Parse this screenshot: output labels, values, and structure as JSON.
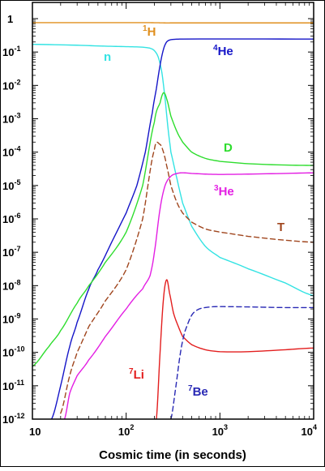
{
  "chart_data": {
    "type": "line",
    "title": "",
    "xlabel": "Cosmic time (in seconds)",
    "ylabel": "",
    "xscale": "log",
    "yscale": "log",
    "xlim": [
      10,
      10000
    ],
    "ylim": [
      1e-12,
      1
    ],
    "grid": false,
    "x_ticks": [
      {
        "base": "10",
        "exp": "",
        "value": 10
      },
      {
        "base": "10",
        "exp": "2",
        "value": 100
      },
      {
        "base": "10",
        "exp": "3",
        "value": 1000
      },
      {
        "base": "10",
        "exp": "4",
        "value": 10000
      }
    ],
    "y_ticks": [
      {
        "base": "1",
        "exp": "",
        "value": 1
      },
      {
        "base": "10",
        "exp": "-1",
        "value": 0.1
      },
      {
        "base": "10",
        "exp": "-2",
        "value": 0.01
      },
      {
        "base": "10",
        "exp": "-3",
        "value": 0.001
      },
      {
        "base": "10",
        "exp": "-4",
        "value": 0.0001
      },
      {
        "base": "10",
        "exp": "-5",
        "value": 1e-05
      },
      {
        "base": "10",
        "exp": "-6",
        "value": 1e-06
      },
      {
        "base": "10",
        "exp": "-7",
        "value": 1e-07
      },
      {
        "base": "10",
        "exp": "-8",
        "value": 1e-08
      },
      {
        "base": "10",
        "exp": "-9",
        "value": 1e-09
      },
      {
        "base": "10",
        "exp": "-10",
        "value": 1e-10
      },
      {
        "base": "10",
        "exp": "-11",
        "value": 1e-11
      },
      {
        "base": "10",
        "exp": "-12",
        "value": 1e-12
      }
    ],
    "series": [
      {
        "label_sup": "1",
        "label_main": "H",
        "color": "#E08F1E",
        "dash": false,
        "x": [
          10,
          100,
          150,
          200,
          230,
          260,
          300,
          1000,
          10000
        ],
        "y": [
          0.76,
          0.76,
          0.76,
          0.755,
          0.75,
          0.745,
          0.745,
          0.745,
          0.745
        ]
      },
      {
        "label_sup": "",
        "label_main": "n",
        "color": "#33E3E3",
        "dash": false,
        "x": [
          10,
          30,
          60,
          100,
          150,
          180,
          200,
          220,
          240,
          260,
          280,
          300,
          350,
          400,
          500,
          700,
          1000,
          2000,
          5000,
          10000
        ],
        "y": [
          0.17,
          0.16,
          0.15,
          0.145,
          0.14,
          0.13,
          0.11,
          0.07,
          0.025,
          0.004,
          0.0005,
          0.0001,
          1.5e-05,
          3e-06,
          6e-07,
          1.5e-07,
          7e-08,
          3.2e-08,
          1.2e-08,
          5e-09
        ]
      },
      {
        "label_sup": "4",
        "label_main": "He",
        "color": "#1515C8",
        "dash": false,
        "x": [
          16,
          20,
          25,
          30,
          40,
          50,
          70,
          100,
          130,
          160,
          190,
          210,
          230,
          250,
          270,
          300,
          400,
          10000
        ],
        "y": [
          1e-12,
          1e-11,
          1.5e-10,
          8e-10,
          8e-09,
          3e-08,
          2e-07,
          1.5e-06,
          1e-05,
          0.0001,
          0.0015,
          0.008,
          0.04,
          0.12,
          0.2,
          0.235,
          0.245,
          0.245
        ]
      },
      {
        "label_sup": "",
        "label_main": "D",
        "color": "#2EDD2E",
        "dash": false,
        "x": [
          10,
          15,
          20,
          30,
          40,
          60,
          100,
          150,
          200,
          230,
          250,
          270,
          300,
          350,
          400,
          500,
          700,
          1000,
          2000,
          5000,
          10000
        ],
        "y": [
          3.8e-11,
          1.5e-10,
          4.5e-10,
          3e-09,
          1e-08,
          5e-08,
          4e-07,
          1e-05,
          0.0008,
          0.003,
          0.006,
          0.004,
          0.0012,
          0.0004,
          0.0002,
          0.0001,
          6.5e-05,
          5.3e-05,
          4.5e-05,
          4.1e-05,
          4e-05
        ]
      },
      {
        "label_sup": "3",
        "label_main": "He",
        "color": "#E31EE3",
        "dash": false,
        "x": [
          22,
          25,
          30,
          40,
          60,
          100,
          150,
          180,
          200,
          230,
          260,
          300,
          350,
          400,
          500,
          700,
          1000,
          2000,
          5000,
          10000
        ],
        "y": [
          1e-12,
          6e-12,
          2e-11,
          6e-11,
          3e-10,
          2e-09,
          8e-09,
          2e-08,
          1e-07,
          2e-06,
          1e-05,
          1.9e-05,
          2.3e-05,
          2.4e-05,
          2.3e-05,
          2.2e-05,
          2.15e-05,
          2.2e-05,
          2.3e-05,
          2.4e-05
        ]
      },
      {
        "label_sup": "",
        "label_main": "T",
        "color": "#A0461E",
        "dash": true,
        "x": [
          20,
          25,
          30,
          40,
          60,
          100,
          150,
          200,
          230,
          250,
          270,
          300,
          350,
          400,
          500,
          700,
          1000,
          2000,
          5000,
          10000
        ],
        "y": [
          1.5e-12,
          2e-11,
          1e-10,
          6e-10,
          3.5e-09,
          3e-08,
          1e-06,
          0.00012,
          0.00017,
          0.0001,
          4e-05,
          1e-05,
          3e-06,
          1.5e-06,
          8e-07,
          5e-07,
          4e-07,
          3e-07,
          2.3e-07,
          2e-07
        ]
      },
      {
        "label_sup": "7",
        "label_main": "Li",
        "color": "#E31E1E",
        "dash": false,
        "x": [
          210,
          230,
          250,
          270,
          290,
          320,
          360,
          400,
          500,
          700,
          1000,
          2000,
          5000,
          10000
        ],
        "y": [
          1e-12,
          1e-10,
          4e-09,
          1.5e-08,
          6e-09,
          1.5e-09,
          6e-10,
          3e-10,
          1.7e-10,
          1.2e-10,
          1.05e-10,
          1.05e-10,
          1.2e-10,
          1.35e-10
        ]
      },
      {
        "label_sup": "7",
        "label_main": "Be",
        "color": "#2828B4",
        "dash": true,
        "x": [
          300,
          340,
          380,
          420,
          500,
          600,
          800,
          1000,
          2000,
          5000,
          10000
        ],
        "y": [
          1e-12,
          1e-11,
          1e-10,
          4e-10,
          1.3e-09,
          2e-09,
          2.3e-09,
          2.35e-09,
          2.3e-09,
          2.2e-09,
          2.2e-09
        ]
      }
    ]
  }
}
